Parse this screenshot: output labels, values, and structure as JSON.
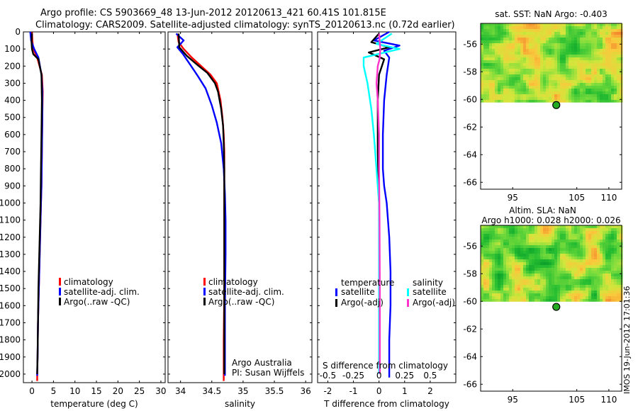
{
  "title_line1": "Argo profile: CS 5903669_48 13-Jun-2012 20120613_421 60.41S 101.815E",
  "title_line2": "Climatology: CARS2009. Satellite-adjusted climatology: synTS_20120613.nc (0.72d earlier)",
  "stamp": "IMOS 19-Jun-2012 17:01:36",
  "colors": {
    "climatology": "#ff0000",
    "satellite_adj": "#0000ff",
    "argo": "#000000",
    "sal_satellite": "#00ffff",
    "sal_argo": "#ff33cc",
    "argo_marker": "#22aa22"
  },
  "chart_data": [
    {
      "type": "line",
      "xlabel": "temperature (deg C)",
      "ylabel": "",
      "xlim": [
        -2,
        31
      ],
      "ylim": [
        2050,
        0
      ],
      "xticks": [
        "0",
        "5",
        "10",
        "15",
        "20",
        "25",
        "30"
      ],
      "yticks": [
        "0",
        "100",
        "200",
        "300",
        "400",
        "500",
        "600",
        "700",
        "800",
        "900",
        "1000",
        "1100",
        "1200",
        "1300",
        "1400",
        "1500",
        "1600",
        "1700",
        "1800",
        "1900",
        "2000"
      ],
      "legend": {
        "placement": "lower-middle",
        "entries": [
          "climatology",
          "satellite-adj. clim.",
          "Argo(..raw -QC)"
        ]
      },
      "series": [
        {
          "name": "climatology",
          "color": "#ff0000",
          "x": [
            0.0,
            0.1,
            0.3,
            1.2,
            2.3,
            2.5,
            2.4,
            2.3,
            2.2,
            2.1,
            2.0,
            1.9,
            1.8,
            1.7,
            1.6,
            1.5,
            1.4,
            1.3,
            1.2
          ],
          "y": [
            0,
            50,
            100,
            150,
            250,
            350,
            500,
            700,
            900,
            1000,
            1100,
            1200,
            1300,
            1400,
            1500,
            1600,
            1700,
            1900,
            2040
          ]
        },
        {
          "name": "satellite-adj. clim.",
          "color": "#0000ff",
          "x": [
            -0.4,
            -0.2,
            0.5,
            1.5,
            2.2,
            2.4,
            2.4,
            2.3,
            2.2,
            2.1,
            2.0,
            1.9,
            1.8,
            1.7,
            1.6,
            1.5,
            1.4,
            1.3,
            1.2
          ],
          "y": [
            0,
            50,
            100,
            150,
            250,
            350,
            500,
            700,
            900,
            1000,
            1100,
            1200,
            1300,
            1400,
            1500,
            1600,
            1700,
            1900,
            2010
          ]
        },
        {
          "name": "Argo(..raw -QC)",
          "color": "#000000",
          "x": [
            0.0,
            -0.1,
            0.0,
            0.3,
            1.5,
            2.2,
            2.3,
            2.2,
            2.1,
            2.0,
            1.9,
            1.8,
            1.7,
            1.6,
            1.5,
            1.4,
            1.3,
            1.2
          ],
          "y": [
            10,
            60,
            100,
            130,
            160,
            250,
            400,
            600,
            800,
            1000,
            1100,
            1200,
            1300,
            1400,
            1500,
            1700,
            1900,
            2000
          ]
        }
      ]
    },
    {
      "type": "line",
      "xlabel": "salinity",
      "ylabel": "",
      "xlim": [
        33.8,
        36.1
      ],
      "ylim": [
        2050,
        0
      ],
      "xticks": [
        "34",
        "34.5",
        "35",
        "35.5",
        "36"
      ],
      "legend": {
        "placement": "lower-middle",
        "entries": [
          "climatology",
          "satellite-adj. clim.",
          "Argo(..raw -QC)"
        ]
      },
      "annotation": [
        "Argo Australia",
        "PI: Susan Wijffels"
      ],
      "series": [
        {
          "name": "climatology",
          "color": "#ff0000",
          "x": [
            33.95,
            33.97,
            34.05,
            34.18,
            34.33,
            34.48,
            34.58,
            34.64,
            34.67,
            34.69,
            34.7,
            34.7,
            34.7,
            34.7,
            34.7,
            34.69,
            34.69
          ],
          "y": [
            10,
            60,
            100,
            150,
            200,
            250,
            300,
            400,
            500,
            600,
            700,
            900,
            1000,
            1200,
            1500,
            1800,
            2040
          ]
        },
        {
          "name": "satellite-adj. clim.",
          "color": "#0000ff",
          "x": [
            33.93,
            34.05,
            33.95,
            34.04,
            34.17,
            34.28,
            34.4,
            34.5,
            34.58,
            34.65,
            34.69,
            34.71,
            34.72,
            34.72,
            34.71,
            34.71,
            34.71
          ],
          "y": [
            10,
            50,
            90,
            130,
            200,
            260,
            330,
            430,
            530,
            650,
            800,
            950,
            1100,
            1300,
            1600,
            1800,
            2010
          ]
        },
        {
          "name": "Argo(..raw -QC)",
          "color": "#000000",
          "x": [
            33.97,
            33.98,
            34.1,
            34.26,
            34.43,
            34.55,
            34.6,
            34.65,
            34.68,
            34.69,
            34.7,
            34.7,
            34.7,
            34.7
          ],
          "y": [
            10,
            90,
            140,
            190,
            240,
            300,
            350,
            450,
            550,
            650,
            800,
            1000,
            1300,
            2000
          ]
        }
      ]
    },
    {
      "type": "line",
      "xlabel": "T difference from climatology",
      "xlabel_top": "S difference from climatology",
      "xlim": [
        -2.4,
        3.0
      ],
      "ylim": [
        2050,
        0
      ],
      "xticks": [
        "-2",
        "-1",
        "0",
        "1",
        "2"
      ],
      "xticks_top": [
        "-0.5",
        "-0.25",
        "0",
        "0.25",
        "0.5"
      ],
      "legend": {
        "placement": "lower",
        "temperature_heading": "temperature",
        "salinity_heading": "salinity",
        "entries": [
          "satellite",
          "Argo(-adj)",
          "satellite",
          "Argo(-adj)"
        ]
      },
      "series": [
        {
          "name": "satellite",
          "color": "#0000ff",
          "x": [
            0.4,
            -0.2,
            0.8,
            0.2,
            0.4,
            0.3,
            0.2,
            0.15,
            0.15,
            0.2,
            0.3,
            0.35,
            0.4,
            0.45,
            0.45,
            0.4,
            0.4
          ],
          "y": [
            0,
            50,
            80,
            110,
            150,
            250,
            400,
            600,
            800,
            900,
            1000,
            1100,
            1200,
            1400,
            1600,
            1800,
            2020
          ]
        },
        {
          "name": "Argo(-adj)",
          "color": "#000000",
          "x": [
            0.0,
            -0.3,
            0.4,
            -0.4,
            0.2,
            0.0,
            -0.05,
            -0.05,
            0.0,
            0.0,
            0.0
          ],
          "y": [
            10,
            60,
            90,
            120,
            160,
            250,
            400,
            700,
            1000,
            1500,
            2000
          ]
        },
        {
          "name": "satellite",
          "color": "#00ffff",
          "x": [
            0.5,
            -0.1,
            0.8,
            -0.6,
            -0.6,
            -0.45,
            -0.3,
            -0.2,
            -0.1,
            0.0,
            0.0,
            0.0,
            0.0
          ],
          "y": [
            10,
            70,
            100,
            150,
            200,
            300,
            450,
            600,
            800,
            1000,
            1300,
            1600,
            2000
          ]
        },
        {
          "name": "Argo(-adj)",
          "color": "#ff33cc",
          "x": [
            0.0,
            0.05,
            0.02,
            -0.05,
            -0.1,
            -0.05,
            0.0,
            0.0,
            0.02,
            0.03,
            0.03
          ],
          "y": [
            10,
            100,
            160,
            200,
            300,
            400,
            600,
            800,
            1100,
            1500,
            2000
          ]
        }
      ]
    }
  ],
  "maps": [
    {
      "title": [
        "sat. SST: NaN Argo: -0.403"
      ],
      "xticks": [
        "95",
        "105",
        "110"
      ],
      "yticks": [
        "-56",
        "-58",
        "-60",
        "-62",
        "-64",
        "-66"
      ],
      "xlim": [
        90,
        112
      ],
      "ylim": [
        -66.5,
        -54.5
      ],
      "data_lat_min": -60.2,
      "argo_position": {
        "lon": 101.8,
        "lat": -60.41
      }
    },
    {
      "title": [
        "Altim. SLA: NaN",
        "Argo h1000: 0.028 h2000: 0.026"
      ],
      "xticks": [
        "95",
        "105",
        "110"
      ],
      "yticks": [
        "-56",
        "-58",
        "-60",
        "-62",
        "-64",
        "-66"
      ],
      "xlim": [
        90,
        112
      ],
      "ylim": [
        -66.5,
        -54.5
      ],
      "data_lat_min": -60.0,
      "argo_position": {
        "lon": 101.8,
        "lat": -60.4
      }
    }
  ]
}
